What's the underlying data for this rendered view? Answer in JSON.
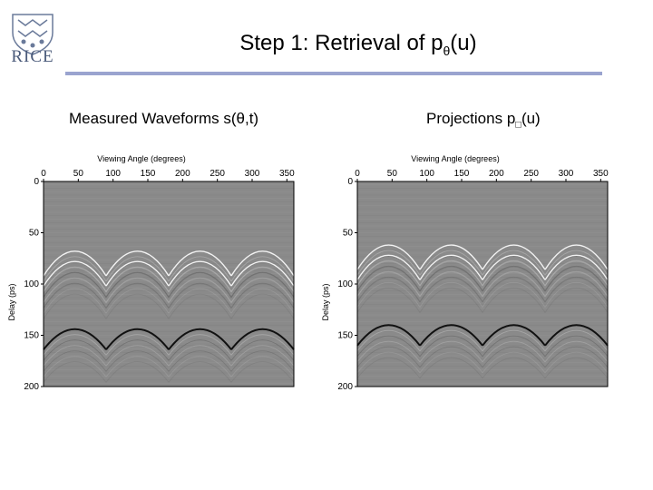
{
  "logo": {
    "text": "RICE"
  },
  "title": {
    "text": "Step 1: Retrieval of p",
    "sub": "θ",
    "tail": "(u)"
  },
  "captions": {
    "left": {
      "text": "Measured Waveforms s(θ,t)"
    },
    "right": {
      "text": "Projections p",
      "sub": "□",
      "tail": "(u)"
    }
  },
  "colors": {
    "rule": "#9aa4cf",
    "plot_bg": "#8a8a8a"
  },
  "chart_data": [
    {
      "type": "heatmap",
      "title": "",
      "xlabel": "Viewing Angle (degrees)",
      "ylabel": "Delay (ps)",
      "xlim": [
        0,
        360
      ],
      "ylim": [
        0,
        200
      ],
      "xticks": [
        "0",
        "50",
        "100",
        "150",
        "200",
        "250",
        "300",
        "350"
      ],
      "yticks": [
        "0",
        "50",
        "100",
        "150",
        "200"
      ],
      "x_axis_position": "top",
      "pattern": "periodic hyperbolic arcs repeating every 90 degrees",
      "arc_apex_delays_ps": [
        68,
        78,
        144
      ],
      "apex_angles_deg": [
        45,
        135,
        225,
        315
      ]
    },
    {
      "type": "heatmap",
      "title": "",
      "xlabel": "Viewing Angle (degrees)",
      "ylabel": "Delay (ps)",
      "xlim": [
        0,
        360
      ],
      "ylim": [
        0,
        200
      ],
      "xticks": [
        "0",
        "50",
        "100",
        "150",
        "200",
        "250",
        "300",
        "350"
      ],
      "yticks": [
        "0",
        "50",
        "100",
        "150",
        "200"
      ],
      "x_axis_position": "top",
      "pattern": "periodic hyperbolic arcs repeating every 90 degrees",
      "arc_apex_delays_ps": [
        62,
        72,
        140
      ],
      "apex_angles_deg": [
        45,
        135,
        225,
        315
      ]
    }
  ]
}
